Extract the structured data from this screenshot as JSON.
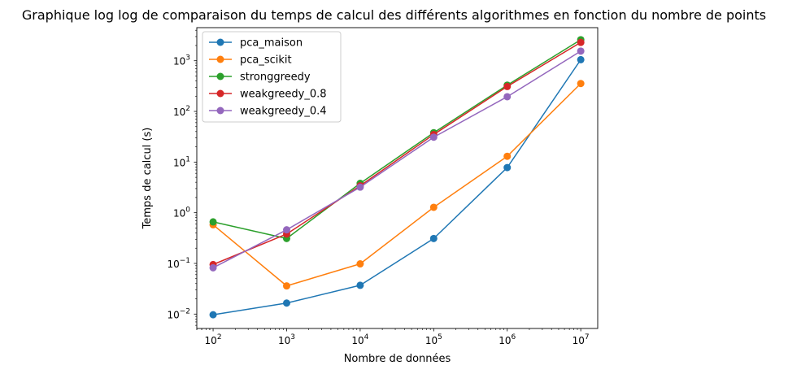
{
  "chart_data": {
    "type": "line",
    "title": "Graphique log log de comparaison du temps de calcul des différents algorithmes en fonction du nombre de points",
    "xlabel": "Nombre de données",
    "ylabel": "Temps de calcul (s)",
    "xscale": "log",
    "yscale": "log",
    "xlim": [
      60,
      17000000
    ],
    "ylim": [
      0.0052,
      4500
    ],
    "x": [
      100,
      1000,
      10000,
      100000,
      1000000,
      10000000
    ],
    "x_ticks": [
      {
        "base": "10",
        "exp": "2"
      },
      {
        "base": "10",
        "exp": "3"
      },
      {
        "base": "10",
        "exp": "4"
      },
      {
        "base": "10",
        "exp": "5"
      },
      {
        "base": "10",
        "exp": "6"
      },
      {
        "base": "10",
        "exp": "7"
      }
    ],
    "y_ticks": [
      {
        "base": "10",
        "exp": "−2"
      },
      {
        "base": "10",
        "exp": "−1"
      },
      {
        "base": "10",
        "exp": "0"
      },
      {
        "base": "10",
        "exp": "1"
      },
      {
        "base": "10",
        "exp": "2"
      },
      {
        "base": "10",
        "exp": "3"
      }
    ],
    "legend_position": "upper-left",
    "grid": false,
    "series": [
      {
        "name": "pca_maison",
        "color": "#1f77b4",
        "values": [
          0.0097,
          0.0165,
          0.037,
          0.31,
          7.8,
          1050
        ]
      },
      {
        "name": "pca_scikit",
        "color": "#ff7f0e",
        "values": [
          0.58,
          0.036,
          0.098,
          1.28,
          13.0,
          355
        ]
      },
      {
        "name": "stronggreedy",
        "color": "#2ca02c",
        "values": [
          0.66,
          0.31,
          3.8,
          38,
          330,
          2600
        ]
      },
      {
        "name": "weakgreedy_0.8",
        "color": "#d62728",
        "values": [
          0.095,
          0.38,
          3.4,
          35,
          310,
          2300
        ]
      },
      {
        "name": "weakgreedy_0.4",
        "color": "#9467bd",
        "values": [
          0.082,
          0.46,
          3.2,
          31,
          195,
          1550
        ]
      }
    ]
  }
}
